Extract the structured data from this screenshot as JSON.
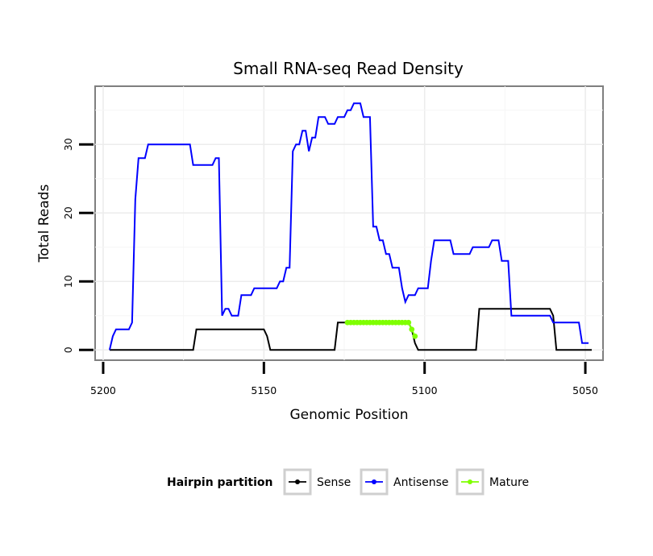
{
  "chart_data": {
    "type": "line",
    "title": "Small RNA-seq Read Density",
    "xlabel": "Genomic Position",
    "ylabel": "Total Reads",
    "xlim": [
      5202.5,
      5044.5
    ],
    "ylim": [
      -1.5,
      38.5
    ],
    "x_reversed": true,
    "x_ticks": [
      5200,
      5150,
      5100,
      5050
    ],
    "y_ticks": [
      0,
      10,
      20,
      30
    ],
    "grid": true,
    "legend": {
      "title": "Hairpin partition",
      "position": "bottom",
      "entries": [
        "Sense",
        "Antisense",
        "Mature"
      ]
    },
    "series": [
      {
        "name": "Sense",
        "color": "#000000",
        "points": [
          [
            5198,
            0
          ],
          [
            5172,
            0
          ],
          [
            5171,
            3
          ],
          [
            5150,
            3
          ],
          [
            5149,
            2
          ],
          [
            5148,
            0
          ],
          [
            5128,
            0
          ],
          [
            5127,
            4
          ],
          [
            5105,
            4
          ],
          [
            5104,
            3
          ],
          [
            5103,
            1
          ],
          [
            5102,
            0
          ],
          [
            5084,
            0
          ],
          [
            5083,
            6
          ],
          [
            5061,
            6
          ],
          [
            5060,
            5
          ],
          [
            5059,
            0
          ],
          [
            5048,
            0
          ]
        ]
      },
      {
        "name": "Antisense",
        "color": "#0000ff",
        "points": [
          [
            5198,
            0
          ],
          [
            5197,
            2
          ],
          [
            5196,
            3
          ],
          [
            5192,
            3
          ],
          [
            5191,
            4
          ],
          [
            5190,
            22
          ],
          [
            5189,
            28
          ],
          [
            5187,
            28
          ],
          [
            5186,
            30
          ],
          [
            5173,
            30
          ],
          [
            5172,
            27
          ],
          [
            5166,
            27
          ],
          [
            5165,
            28
          ],
          [
            5164,
            28
          ],
          [
            5163,
            5
          ],
          [
            5162,
            6
          ],
          [
            5161,
            6
          ],
          [
            5160,
            5
          ],
          [
            5158,
            5
          ],
          [
            5157,
            8
          ],
          [
            5154,
            8
          ],
          [
            5153,
            9
          ],
          [
            5146,
            9
          ],
          [
            5145,
            10
          ],
          [
            5144,
            10
          ],
          [
            5143,
            12
          ],
          [
            5142,
            12
          ],
          [
            5141,
            29
          ],
          [
            5140,
            30
          ],
          [
            5139,
            30
          ],
          [
            5138,
            32
          ],
          [
            5137,
            32
          ],
          [
            5136,
            29
          ],
          [
            5135,
            31
          ],
          [
            5134,
            31
          ],
          [
            5133,
            34
          ],
          [
            5131,
            34
          ],
          [
            5130,
            33
          ],
          [
            5128,
            33
          ],
          [
            5127,
            34
          ],
          [
            5125,
            34
          ],
          [
            5124,
            35
          ],
          [
            5123,
            35
          ],
          [
            5122,
            36
          ],
          [
            5120,
            36
          ],
          [
            5119,
            34
          ],
          [
            5117,
            34
          ],
          [
            5116,
            18
          ],
          [
            5115,
            18
          ],
          [
            5114,
            16
          ],
          [
            5113,
            16
          ],
          [
            5112,
            14
          ],
          [
            5111,
            14
          ],
          [
            5110,
            12
          ],
          [
            5108,
            12
          ],
          [
            5107,
            9
          ],
          [
            5106,
            7
          ],
          [
            5105,
            8
          ],
          [
            5103,
            8
          ],
          [
            5102,
            9
          ],
          [
            5099,
            9
          ],
          [
            5098,
            13
          ],
          [
            5097,
            16
          ],
          [
            5092,
            16
          ],
          [
            5091,
            14
          ],
          [
            5086,
            14
          ],
          [
            5085,
            15
          ],
          [
            5080,
            15
          ],
          [
            5079,
            16
          ],
          [
            5077,
            16
          ],
          [
            5076,
            13
          ],
          [
            5074,
            13
          ],
          [
            5073,
            5
          ],
          [
            5061,
            5
          ],
          [
            5060,
            4
          ],
          [
            5052,
            4
          ],
          [
            5051,
            1
          ],
          [
            5049,
            1
          ]
        ]
      },
      {
        "name": "Mature",
        "color": "#7fff00",
        "points": [
          [
            5124,
            4
          ],
          [
            5123,
            4
          ],
          [
            5122,
            4
          ],
          [
            5121,
            4
          ],
          [
            5120,
            4
          ],
          [
            5119,
            4
          ],
          [
            5118,
            4
          ],
          [
            5117,
            4
          ],
          [
            5116,
            4
          ],
          [
            5115,
            4
          ],
          [
            5114,
            4
          ],
          [
            5113,
            4
          ],
          [
            5112,
            4
          ],
          [
            5111,
            4
          ],
          [
            5110,
            4
          ],
          [
            5109,
            4
          ],
          [
            5108,
            4
          ],
          [
            5107,
            4
          ],
          [
            5106,
            4
          ],
          [
            5105,
            4
          ],
          [
            5104,
            3
          ],
          [
            5103,
            2
          ]
        ]
      }
    ]
  }
}
